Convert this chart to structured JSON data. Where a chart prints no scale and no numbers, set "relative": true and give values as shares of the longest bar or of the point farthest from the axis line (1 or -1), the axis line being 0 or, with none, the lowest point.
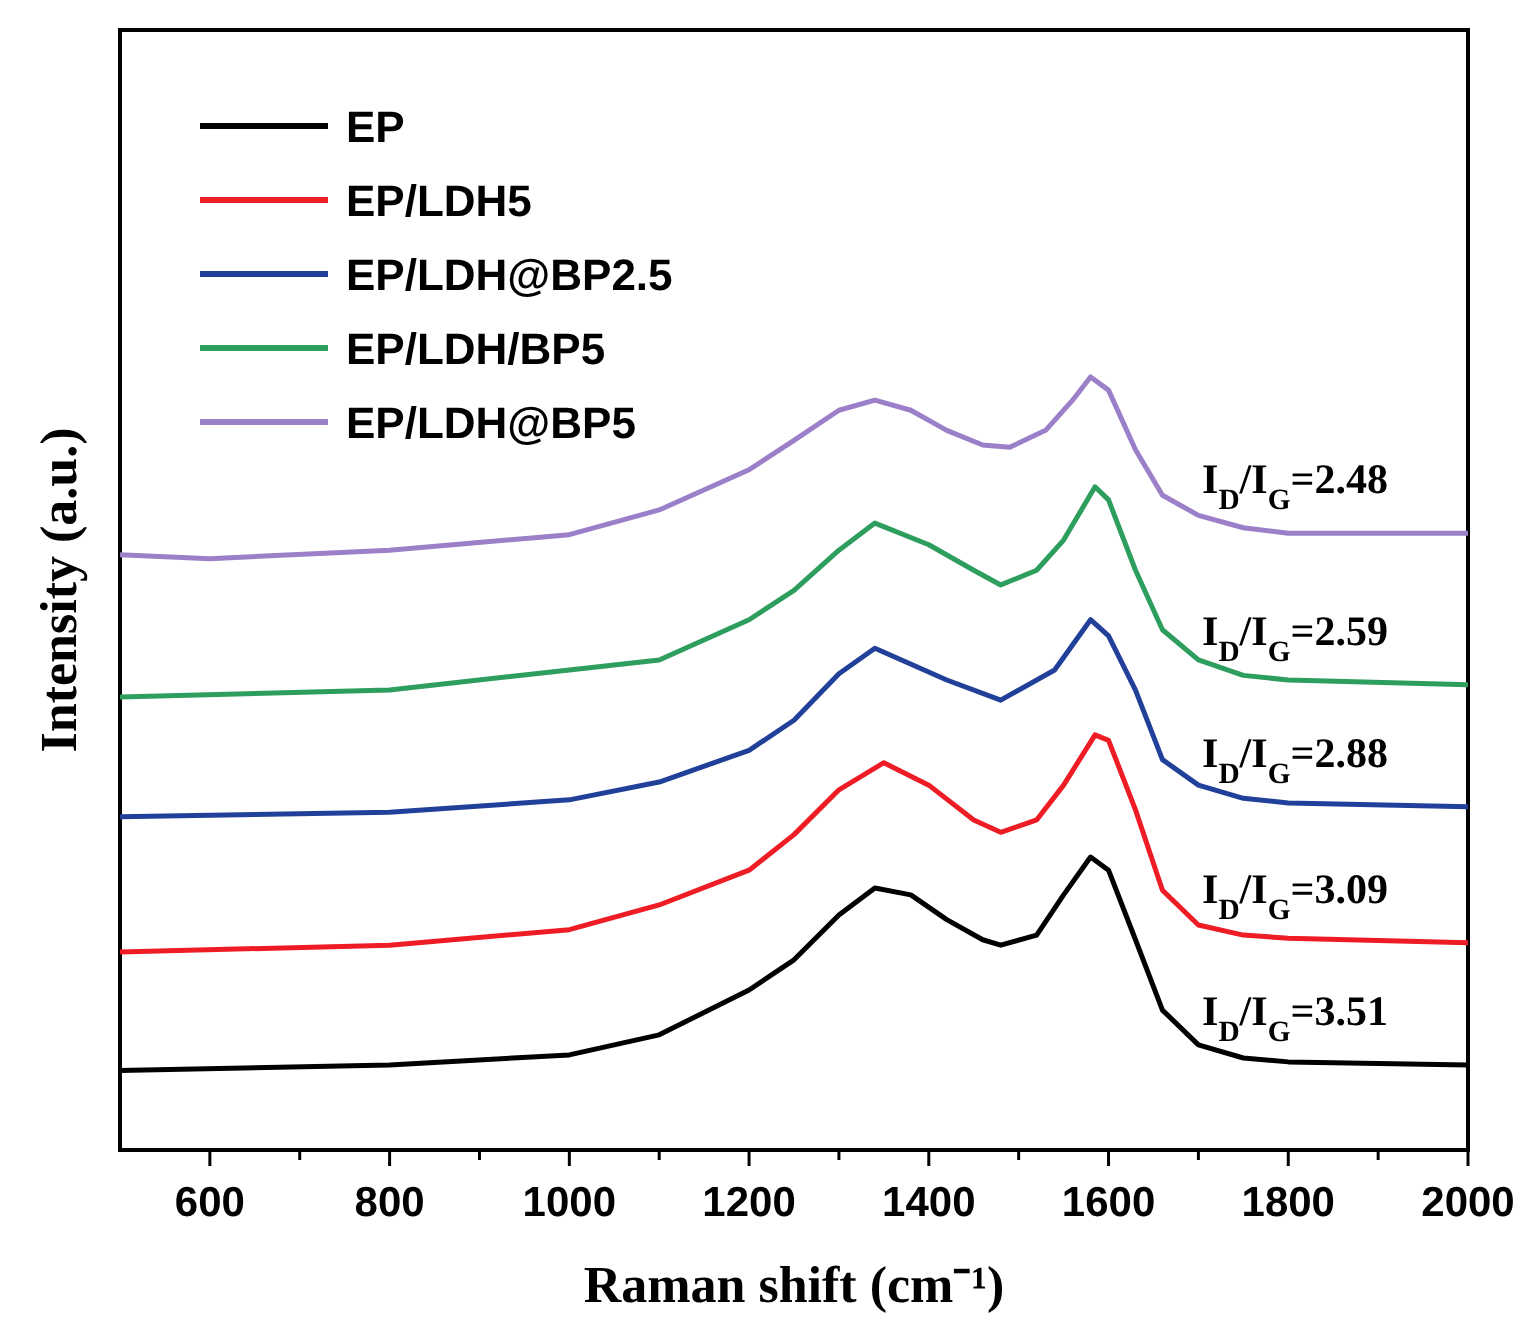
{
  "chart_data": {
    "type": "line",
    "xlabel": "Raman shift (cm⁻¹)",
    "ylabel": "Intensity (a.u.)",
    "relative": true,
    "xlim": [
      500,
      2000
    ],
    "xticks": [
      {
        "value": 600,
        "label": "600"
      },
      {
        "value": 700,
        "label": null
      },
      {
        "value": 800,
        "label": "800"
      },
      {
        "value": 900,
        "label": null
      },
      {
        "value": 1000,
        "label": "1000"
      },
      {
        "value": 1100,
        "label": null
      },
      {
        "value": 1200,
        "label": "1200"
      },
      {
        "value": 1300,
        "label": null
      },
      {
        "value": 1400,
        "label": "1400"
      },
      {
        "value": 1500,
        "label": null
      },
      {
        "value": 1600,
        "label": "1600"
      },
      {
        "value": 1700,
        "label": null
      },
      {
        "value": 1800,
        "label": "1800"
      },
      {
        "value": 1900,
        "label": null
      },
      {
        "value": 2000,
        "label": "2000"
      }
    ],
    "legend": "top left",
    "line_style": "solid",
    "marker": "none",
    "grid": false,
    "series": [
      {
        "name": "EP",
        "color": "#000000",
        "x": [
          500,
          800,
          1000,
          1100,
          1200,
          1250,
          1300,
          1340,
          1380,
          1420,
          1460,
          1480,
          1520,
          1550,
          1580,
          1600,
          1630,
          1660,
          1700,
          1750,
          1800,
          2000
        ],
        "values": [
          0.103,
          0.11,
          0.123,
          0.149,
          0.207,
          0.246,
          0.304,
          0.339,
          0.33,
          0.298,
          0.272,
          0.265,
          0.278,
          0.33,
          0.379,
          0.362,
          0.272,
          0.181,
          0.136,
          0.119,
          0.114,
          0.11
        ]
      },
      {
        "name": "EP/LDH5",
        "color": "#ee1c25",
        "x": [
          500,
          800,
          1000,
          1100,
          1200,
          1250,
          1300,
          1350,
          1400,
          1450,
          1480,
          1520,
          1550,
          1585,
          1600,
          1630,
          1660,
          1700,
          1750,
          1800,
          2000
        ],
        "values": [
          0.256,
          0.265,
          0.285,
          0.317,
          0.362,
          0.408,
          0.466,
          0.501,
          0.472,
          0.427,
          0.411,
          0.427,
          0.472,
          0.537,
          0.53,
          0.44,
          0.336,
          0.291,
          0.278,
          0.274,
          0.268
        ]
      },
      {
        "name": "EP/LDH@BP2.5",
        "color": "#21409a",
        "x": [
          500,
          800,
          1000,
          1100,
          1200,
          1250,
          1300,
          1340,
          1420,
          1480,
          1540,
          1580,
          1600,
          1630,
          1660,
          1700,
          1750,
          1800,
          2000
        ],
        "values": [
          0.431,
          0.437,
          0.453,
          0.476,
          0.517,
          0.556,
          0.616,
          0.649,
          0.608,
          0.582,
          0.621,
          0.686,
          0.665,
          0.595,
          0.505,
          0.472,
          0.455,
          0.449,
          0.444
        ]
      },
      {
        "name": "EP/LDH/BP5",
        "color": "#2e9e5e",
        "x": [
          500,
          800,
          1000,
          1100,
          1200,
          1250,
          1300,
          1340,
          1400,
          1450,
          1480,
          1520,
          1550,
          1585,
          1600,
          1630,
          1660,
          1700,
          1750,
          1800,
          2000
        ],
        "values": [
          0.586,
          0.595,
          0.621,
          0.634,
          0.686,
          0.724,
          0.776,
          0.811,
          0.783,
          0.75,
          0.731,
          0.75,
          0.789,
          0.858,
          0.841,
          0.75,
          0.673,
          0.634,
          0.614,
          0.608,
          0.602
        ]
      },
      {
        "name": "EP/LDH@BP5",
        "color": "#9b7fc9",
        "x": [
          500,
          600,
          800,
          1000,
          1100,
          1200,
          1250,
          1300,
          1340,
          1380,
          1420,
          1460,
          1490,
          1530,
          1560,
          1580,
          1600,
          1630,
          1660,
          1700,
          1750,
          1800,
          2000
        ],
        "values": [
          0.77,
          0.765,
          0.776,
          0.796,
          0.828,
          0.88,
          0.918,
          0.957,
          0.97,
          0.957,
          0.931,
          0.912,
          0.909,
          0.931,
          0.97,
          1,
          0.983,
          0.906,
          0.847,
          0.821,
          0.805,
          0.798,
          0.798
        ]
      }
    ],
    "annotations": [
      "I$_{D}$/I$_{G}$=2.48",
      "I$_{D}$/I$_{G}$=2.59",
      "I$_{D}$/I$_{G}$=2.88",
      "I$_{D}$/I$_{G}$=3.09",
      "I$_{D}$/I$_{G}$=3.51"
    ]
  }
}
